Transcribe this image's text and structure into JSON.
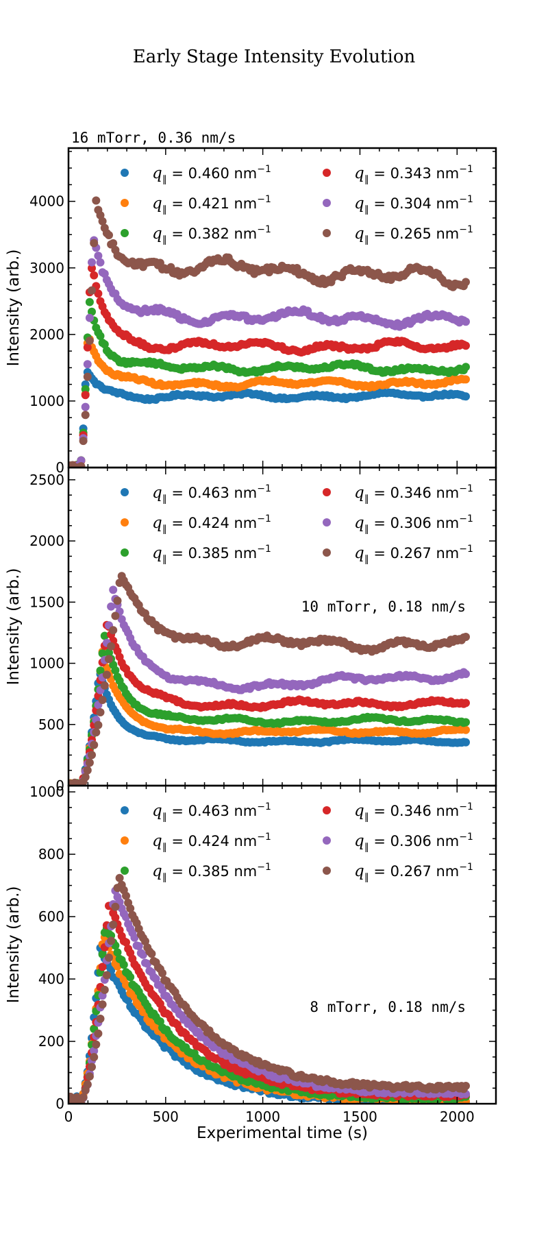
{
  "chart_data": {
    "type": "scatter",
    "title": "Early Stage Intensity Evolution",
    "xlabel": "Experimental time (s)",
    "ylabel": "Intensity (arb.)",
    "xlim": [
      0,
      2200
    ],
    "xticks": [
      "0",
      "500",
      "1000",
      "1500",
      "2000"
    ],
    "colors": [
      "#1f77b4",
      "#ff7f0e",
      "#2ca02c",
      "#d62728",
      "#9467bd",
      "#8c564b"
    ],
    "legend_prefix": "q",
    "legend_sub": "∥",
    "legend_eq": " = ",
    "legend_unit": " nm",
    "legend_exp": "−1",
    "panels": [
      {
        "condition": "16 mTorr, 0.36 nm/s",
        "condition_position": "top-left-outside",
        "ylim": [
          0,
          4800
        ],
        "yticks": [
          "0",
          "1000",
          "2000",
          "3000",
          "4000"
        ],
        "series": [
          {
            "name": "0.460",
            "plateau": 1070,
            "peak": 1480,
            "peak_time": 90,
            "final": 1080
          },
          {
            "name": "0.421",
            "plateau": 1260,
            "peak": 2000,
            "peak_time": 100,
            "final": 1280
          },
          {
            "name": "0.382",
            "plateau": 1500,
            "peak": 2520,
            "peak_time": 105,
            "final": 1490
          },
          {
            "name": "0.343",
            "plateau": 1830,
            "peak": 3100,
            "peak_time": 115,
            "final": 1810
          },
          {
            "name": "0.304",
            "plateau": 2270,
            "peak": 3480,
            "peak_time": 125,
            "final": 2220
          },
          {
            "name": "0.265",
            "plateau": 3000,
            "peak": 4040,
            "peak_time": 140,
            "final": 2830
          }
        ]
      },
      {
        "condition": "10 mTorr, 0.18 nm/s",
        "condition_position": "center-right",
        "ylim": [
          0,
          2600
        ],
        "yticks": [
          "0",
          "500",
          "1000",
          "1500",
          "2000",
          "2500"
        ],
        "series": [
          {
            "name": "0.463",
            "plateau": 365,
            "peak": 930,
            "peak_time": 160,
            "final": 365
          },
          {
            "name": "0.424",
            "plateau": 440,
            "peak": 1090,
            "peak_time": 175,
            "final": 445
          },
          {
            "name": "0.385",
            "plateau": 530,
            "peak": 1230,
            "peak_time": 185,
            "final": 535
          },
          {
            "name": "0.346",
            "plateau": 660,
            "peak": 1350,
            "peak_time": 200,
            "final": 680
          },
          {
            "name": "0.306",
            "plateau": 810,
            "peak": 1610,
            "peak_time": 230,
            "final": 910
          },
          {
            "name": "0.267",
            "plateau": 1170,
            "peak": 1730,
            "peak_time": 270,
            "final": 1150
          }
        ]
      },
      {
        "condition": "8 mTorr, 0.18 nm/s",
        "condition_position": "center-right",
        "ylim": [
          0,
          1020
        ],
        "yticks": [
          "0",
          "200",
          "400",
          "600",
          "800",
          "1000"
        ],
        "series": [
          {
            "name": "0.463",
            "plateau": 0,
            "peak": 500,
            "peak_time": 165,
            "final": 5
          },
          {
            "name": "0.424",
            "plateau": 0,
            "peak": 540,
            "peak_time": 180,
            "final": 10
          },
          {
            "name": "0.385",
            "plateau": 0,
            "peak": 580,
            "peak_time": 190,
            "final": 15
          },
          {
            "name": "0.346",
            "plateau": 0,
            "peak": 650,
            "peak_time": 210,
            "final": 25
          },
          {
            "name": "0.306",
            "plateau": 0,
            "peak": 690,
            "peak_time": 240,
            "final": 30
          },
          {
            "name": "0.267",
            "plateau": 0,
            "peak": 730,
            "peak_time": 260,
            "final": 45
          }
        ]
      }
    ]
  }
}
